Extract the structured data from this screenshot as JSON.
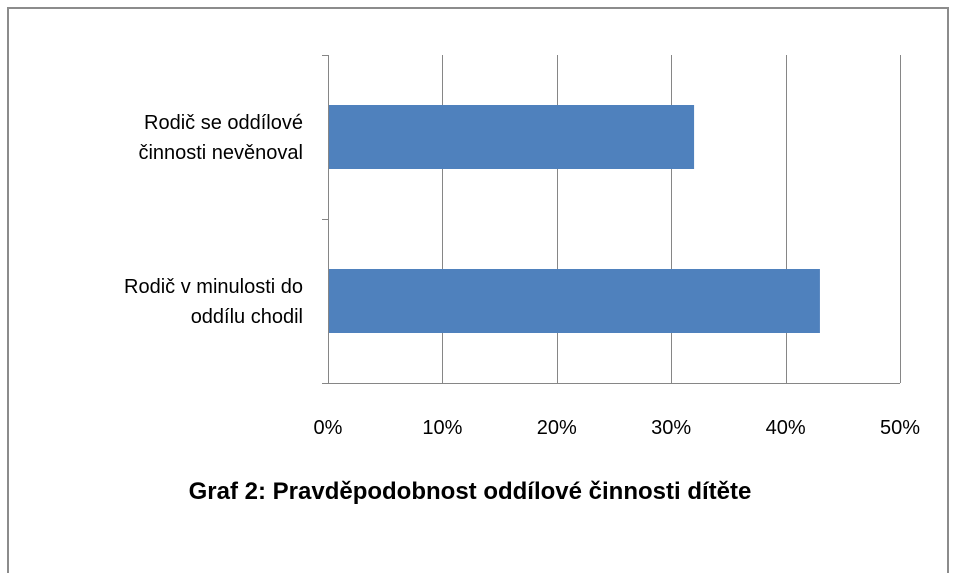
{
  "caption": "Graf 2: Pravděpodobnost oddílové činnosti dítěte",
  "colors": {
    "bar": "#4f81bd",
    "axis": "#868686",
    "grid": "#868686",
    "frame": "#8c8c8c",
    "text": "#000000"
  },
  "chart_data": {
    "type": "bar",
    "orientation": "horizontal",
    "categories": [
      [
        "Rodič se oddílové",
        "činnosti nevěnoval"
      ],
      [
        "Rodič v minulosti do",
        "oddílu chodil"
      ]
    ],
    "values": [
      0.32,
      0.43
    ],
    "xlim": [
      0,
      0.5
    ],
    "xticks": [
      0,
      0.1,
      0.2,
      0.3,
      0.4,
      0.5
    ],
    "xtick_labels": [
      "0%",
      "10%",
      "20%",
      "30%",
      "40%",
      "50%"
    ],
    "grid": "vertical",
    "legend": "none",
    "title": "",
    "xlabel": "",
    "ylabel": ""
  }
}
